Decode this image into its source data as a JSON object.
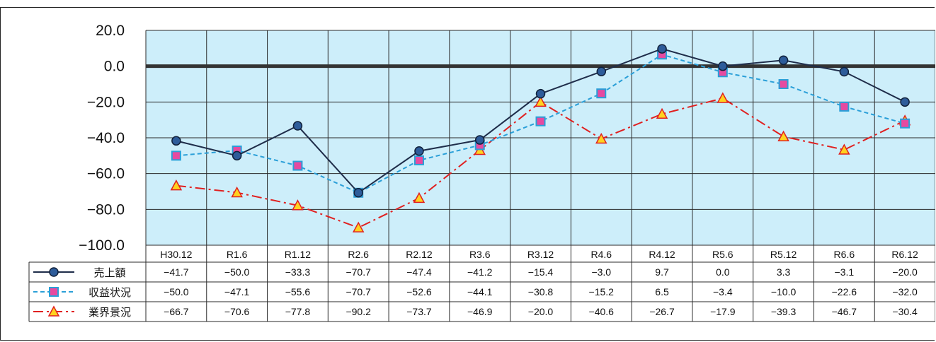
{
  "chart_data": {
    "type": "line",
    "categories": [
      "H30.12",
      "R1.6",
      "R1.12",
      "R2.6",
      "R2.12",
      "R3.6",
      "R3.12",
      "R4.6",
      "R4.12",
      "R5.6",
      "R5.12",
      "R6.6",
      "R6.12"
    ],
    "series": [
      {
        "name": "売上額",
        "values": [
          -41.7,
          -50.0,
          -33.3,
          -70.7,
          -47.4,
          -41.2,
          -15.4,
          -3.0,
          9.7,
          0.0,
          3.3,
          -3.1,
          -20.0
        ],
        "color": "#1f2d4a",
        "marker": "circle",
        "line": "solid"
      },
      {
        "name": "収益状況",
        "values": [
          -50.0,
          -47.1,
          -55.6,
          -70.7,
          -52.6,
          -44.1,
          -30.8,
          -15.2,
          6.5,
          -3.4,
          -10.0,
          -22.6,
          -32.0
        ],
        "color": "#2a9fd8",
        "marker": "square",
        "line": "dashed"
      },
      {
        "name": "業界景況",
        "values": [
          -66.7,
          -70.6,
          -77.8,
          -90.2,
          -73.7,
          -46.9,
          -20.0,
          -40.6,
          -26.7,
          -17.9,
          -39.3,
          -46.7,
          -30.4
        ],
        "color": "#e02020",
        "marker": "triangle",
        "line": "dashdot"
      }
    ],
    "table": {
      "series_labels": [
        "売上額",
        "収益状況",
        "業界景況"
      ],
      "cells": [
        [
          "−41.7",
          "−50.0",
          "−33.3",
          "−70.7",
          "−47.4",
          "−41.2",
          "−15.4",
          "−3.0",
          "9.7",
          "0.0",
          "3.3",
          "−3.1",
          "−20.0"
        ],
        [
          "−50.0",
          "−47.1",
          "−55.6",
          "−70.7",
          "−52.6",
          "−44.1",
          "−30.8",
          "−15.2",
          "6.5",
          "−3.4",
          "−10.0",
          "−22.6",
          "−32.0"
        ],
        [
          "−66.7",
          "−70.6",
          "−77.8",
          "−90.2",
          "−73.7",
          "−46.9",
          "−20.0",
          "−40.6",
          "−26.7",
          "−17.9",
          "−39.3",
          "−46.7",
          "−30.4"
        ]
      ]
    },
    "yticks": [
      "20.0",
      "0.0",
      "−20.0",
      "−40.0",
      "−60.0",
      "−80.0",
      "−100.0"
    ],
    "ylim": [
      -100,
      20
    ],
    "grid": true,
    "plot_bg": "#cdeefa",
    "zero_line_color": "#333333"
  }
}
